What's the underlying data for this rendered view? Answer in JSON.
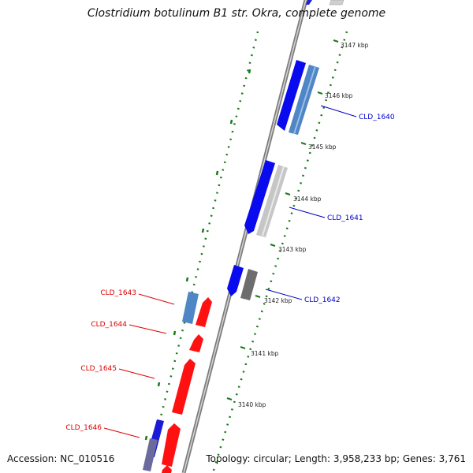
{
  "title": "Clostridium botulinum B1 str. Okra, complete genome",
  "footer": {
    "accession": "Accession: NC_010516",
    "summary": "Topology: circular; Length: 3,958,233 bp; Genes: 3,761"
  },
  "colors": {
    "forward_label": "#0000cc",
    "reverse_label": "#dd0000",
    "tick": "#1a7a1a",
    "backbone": "#8a8a8a"
  },
  "ticks": [
    "3147 kbp",
    "3146 kbp",
    "3145 kbp",
    "3144 kbp",
    "3143 kbp",
    "3142 kbp",
    "3141 kbp",
    "3140 kbp"
  ],
  "genes": [
    {
      "name": "CLD_1640",
      "strand": "forward"
    },
    {
      "name": "CLD_1641",
      "strand": "forward"
    },
    {
      "name": "CLD_1642",
      "strand": "forward"
    },
    {
      "name": "CLD_1643",
      "strand": "reverse"
    },
    {
      "name": "CLD_1644",
      "strand": "reverse"
    },
    {
      "name": "CLD_1645",
      "strand": "reverse"
    },
    {
      "name": "CLD_1646",
      "strand": "reverse"
    }
  ]
}
